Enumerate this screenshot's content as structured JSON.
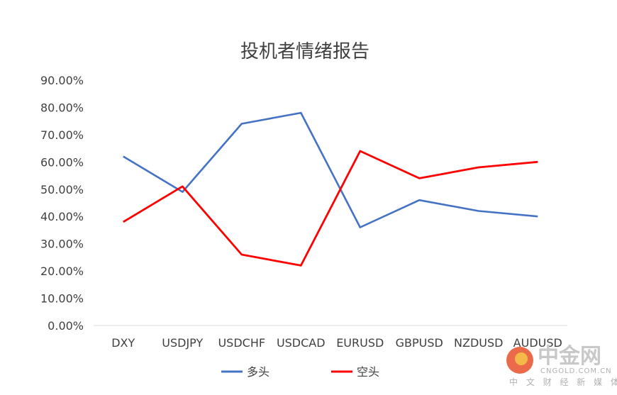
{
  "chart_data": {
    "type": "line",
    "title": "投机者情绪报告",
    "categories": [
      "DXY",
      "USDJPY",
      "USDCHF",
      "USDCAD",
      "EURUSD",
      "GBPUSD",
      "NZDUSD",
      "AUDUSD"
    ],
    "series": [
      {
        "name": "多头",
        "color": "#4472C4",
        "values": [
          62,
          49,
          74,
          78,
          36,
          46,
          42,
          40
        ]
      },
      {
        "name": "空头",
        "color": "#FF0000",
        "values": [
          38,
          51,
          26,
          22,
          64,
          54,
          58,
          60
        ]
      }
    ],
    "ylim": [
      0,
      90
    ],
    "yticks": [
      "0.00%",
      "10.00%",
      "20.00%",
      "30.00%",
      "40.00%",
      "50.00%",
      "60.00%",
      "70.00%",
      "80.00%",
      "90.00%"
    ],
    "grid": false,
    "legend_position": "bottom"
  },
  "watermark": {
    "logo_text": "中金网",
    "domain": "CNGOLD.COM.CN",
    "slogan": "中 文 财 经 新 媒 体"
  }
}
